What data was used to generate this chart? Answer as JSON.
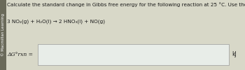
{
  "bg_color": "#d8d8c8",
  "text_color": "#1a1a1a",
  "sidebar_color": "#6a6a5a",
  "sidebar_text": "© Macmillan Learning",
  "line1": "Calculate the standard change in Gibbs free energy for the following reaction at 25 °C. Use the data included in this table.",
  "line2": "3 NO₂(g) + H₂O(l) → 2 HNO₃(l) + NO(g)",
  "label": "ΔG°rxn =",
  "unit": "kJ",
  "box_facecolor": "#e8ede8",
  "box_edgecolor": "#999999",
  "fontsize_main": 5.2,
  "fontsize_label": 5.5,
  "fontsize_sidebar": 4.0,
  "fontsize_unit": 5.5
}
